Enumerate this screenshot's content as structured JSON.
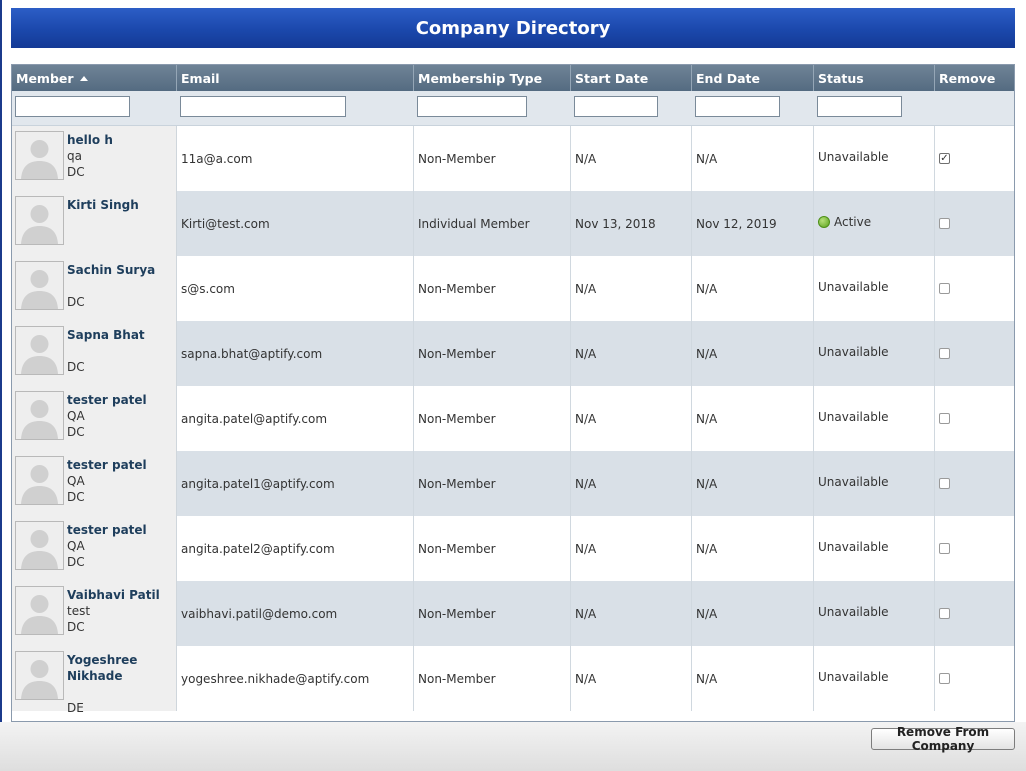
{
  "title": "Company Directory",
  "columns": [
    "Member",
    "Email",
    "Membership Type",
    "Start Date",
    "End Date",
    "Status",
    "Remove"
  ],
  "sort_icon": "sort-ascending-icon",
  "rows": [
    {
      "name": "hello h",
      "line2": "qa",
      "line3": "DC",
      "email": "11a@a.com",
      "type": "Non-Member",
      "start": "N/A",
      "end": "N/A",
      "status": "Unavailable",
      "checked": true
    },
    {
      "name": "Kirti Singh",
      "line2": "",
      "line3": "",
      "email": "Kirti@test.com",
      "type": "Individual Member",
      "start": "Nov 13, 2018",
      "end": "Nov 12, 2019",
      "status": "Active",
      "checked": false
    },
    {
      "name": "Sachin Surya",
      "line2": "",
      "line3": "DC",
      "email": "s@s.com",
      "type": "Non-Member",
      "start": "N/A",
      "end": "N/A",
      "status": "Unavailable",
      "checked": false
    },
    {
      "name": "Sapna Bhat",
      "line2": "",
      "line3": "DC",
      "email": "sapna.bhat@aptify.com",
      "type": "Non-Member",
      "start": "N/A",
      "end": "N/A",
      "status": "Unavailable",
      "checked": false
    },
    {
      "name": "tester patel",
      "line2": "QA",
      "line3": "DC",
      "email": "angita.patel@aptify.com",
      "type": "Non-Member",
      "start": "N/A",
      "end": "N/A",
      "status": "Unavailable",
      "checked": false
    },
    {
      "name": "tester patel",
      "line2": "QA",
      "line3": "DC",
      "email": "angita.patel1@aptify.com",
      "type": "Non-Member",
      "start": "N/A",
      "end": "N/A",
      "status": "Unavailable",
      "checked": false
    },
    {
      "name": "tester patel",
      "line2": "QA",
      "line3": "DC",
      "email": "angita.patel2@aptify.com",
      "type": "Non-Member",
      "start": "N/A",
      "end": "N/A",
      "status": "Unavailable",
      "checked": false
    },
    {
      "name": "Vaibhavi Patil",
      "line2": "test",
      "line3": "DC",
      "email": "vaibhavi.patil@demo.com",
      "type": "Non-Member",
      "start": "N/A",
      "end": "N/A",
      "status": "Unavailable",
      "checked": false
    },
    {
      "name": "Yogeshree Nikhade",
      "line2": "",
      "line3": "DE",
      "email": "yogeshree.nikhade@aptify.com",
      "type": "Non-Member",
      "start": "N/A",
      "end": "N/A",
      "status": "Unavailable",
      "checked": false
    }
  ],
  "remove_button_label": "Remove From Company",
  "colors": {
    "title_bar": "#1b48ac",
    "header": "#546b81",
    "alt_row": "#d9e0e7",
    "active_dot": "#5aa21c"
  }
}
